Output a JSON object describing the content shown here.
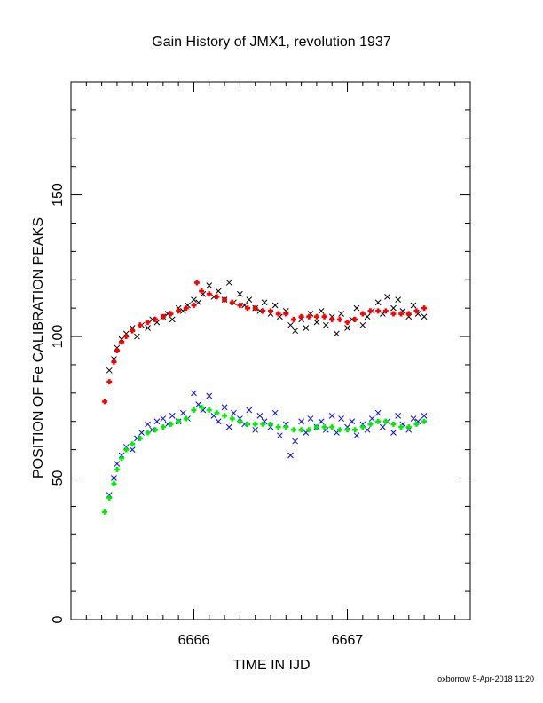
{
  "title": "Gain History of JMX1, revolution 1937",
  "footer": "oxborrow  5-Apr-2018 11:20",
  "chart_data": {
    "type": "scatter",
    "title": "Gain History of JMX1, revolution 1937",
    "xlabel": "TIME IN IJD",
    "ylabel": "POSITION OF Fe CALIBRATION PEAKS",
    "xlim": [
      6665.2,
      6667.8
    ],
    "ylim": [
      0,
      190
    ],
    "xticks": [
      6666,
      6667
    ],
    "xtick_labels": [
      "6666",
      "6667"
    ],
    "yticks": [
      0,
      50,
      100,
      150
    ],
    "ytick_labels": [
      "0",
      "50",
      "100",
      "150"
    ],
    "grid": false,
    "legend": "none",
    "series": [
      {
        "color": "#000000",
        "marker": "x",
        "x": [
          6665.45,
          6665.48,
          6665.5,
          6665.53,
          6665.56,
          6665.6,
          6665.63,
          6665.66,
          6665.7,
          6665.73,
          6665.76,
          6665.8,
          6665.83,
          6665.86,
          6665.9,
          6665.93,
          6665.96,
          6666.0,
          6666.03,
          6666.06,
          6666.1,
          6666.13,
          6666.16,
          6666.2,
          6666.23,
          6666.26,
          6666.3,
          6666.33,
          6666.36,
          6666.4,
          6666.43,
          6666.46,
          6666.5,
          6666.53,
          6666.56,
          6666.6,
          6666.63,
          6666.66,
          6666.7,
          6666.73,
          6666.76,
          6666.8,
          6666.83,
          6666.86,
          6666.9,
          6666.93,
          6666.96,
          6667.0,
          6667.03,
          6667.06,
          6667.1,
          6667.13,
          6667.16,
          6667.2,
          6667.23,
          6667.26,
          6667.3,
          6667.33,
          6667.36,
          6667.4,
          6667.43,
          6667.46,
          6667.5
        ],
        "y": [
          88,
          92,
          96,
          99,
          101,
          103,
          100,
          104,
          103,
          106,
          105,
          107,
          108,
          106,
          110,
          109,
          111,
          113,
          112,
          115,
          118,
          114,
          116,
          113,
          119,
          112,
          115,
          111,
          113,
          110,
          109,
          112,
          108,
          111,
          107,
          109,
          104,
          102,
          106,
          103,
          108,
          105,
          109,
          104,
          107,
          101,
          108,
          103,
          106,
          110,
          104,
          107,
          109,
          112,
          108,
          114,
          110,
          113,
          109,
          107,
          111,
          108,
          107
        ]
      },
      {
        "color": "#ff0000",
        "marker": "+",
        "x": [
          6665.42,
          6665.45,
          6665.48,
          6665.5,
          6665.53,
          6665.56,
          6665.6,
          6665.65,
          6665.7,
          6665.75,
          6665.8,
          6665.85,
          6665.9,
          6665.95,
          6666.0,
          6666.02,
          6666.05,
          6666.1,
          6666.15,
          6666.2,
          6666.25,
          6666.3,
          6666.35,
          6666.4,
          6666.45,
          6666.5,
          6666.55,
          6666.6,
          6666.65,
          6666.7,
          6666.75,
          6666.8,
          6666.85,
          6666.9,
          6666.95,
          6667.0,
          6667.05,
          6667.1,
          6667.15,
          6667.2,
          6667.25,
          6667.3,
          6667.35,
          6667.4,
          6667.45,
          6667.5
        ],
        "y": [
          77,
          84,
          91,
          95,
          98,
          100,
          102,
          104,
          105,
          106,
          107,
          108,
          109,
          110,
          111,
          119,
          116,
          115,
          114,
          113,
          112,
          111,
          110,
          110,
          109,
          109,
          108,
          108,
          106,
          107,
          107,
          107,
          107,
          106,
          106,
          105,
          106,
          108,
          109,
          109,
          109,
          108,
          108,
          108,
          109,
          110
        ]
      },
      {
        "color": "#0000ff",
        "marker": "x",
        "x": [
          6665.45,
          6665.48,
          6665.5,
          6665.53,
          6665.56,
          6665.6,
          6665.63,
          6665.66,
          6665.7,
          6665.73,
          6665.76,
          6665.8,
          6665.83,
          6665.86,
          6665.9,
          6665.93,
          6665.96,
          6666.0,
          6666.03,
          6666.06,
          6666.1,
          6666.13,
          6666.16,
          6666.2,
          6666.23,
          6666.26,
          6666.3,
          6666.33,
          6666.36,
          6666.4,
          6666.43,
          6666.46,
          6666.5,
          6666.53,
          6666.56,
          6666.6,
          6666.63,
          6666.66,
          6666.7,
          6666.73,
          6666.76,
          6666.8,
          6666.83,
          6666.86,
          6666.9,
          6666.93,
          6666.96,
          6667.0,
          6667.03,
          6667.06,
          6667.1,
          6667.13,
          6667.16,
          6667.2,
          6667.23,
          6667.26,
          6667.3,
          6667.33,
          6667.36,
          6667.4,
          6667.43,
          6667.46,
          6667.5
        ],
        "y": [
          44,
          50,
          55,
          58,
          61,
          60,
          64,
          66,
          69,
          67,
          70,
          71,
          69,
          72,
          70,
          73,
          71,
          80,
          76,
          74,
          79,
          72,
          70,
          75,
          68,
          73,
          71,
          69,
          74,
          67,
          72,
          70,
          68,
          73,
          65,
          69,
          58,
          63,
          70,
          66,
          71,
          68,
          70,
          67,
          72,
          66,
          71,
          68,
          70,
          65,
          69,
          67,
          71,
          73,
          68,
          70,
          66,
          72,
          69,
          67,
          71,
          70,
          72
        ]
      },
      {
        "color": "#00ee00",
        "marker": "+",
        "x": [
          6665.42,
          6665.45,
          6665.48,
          6665.5,
          6665.53,
          6665.56,
          6665.6,
          6665.65,
          6665.7,
          6665.75,
          6665.8,
          6665.85,
          6665.9,
          6665.95,
          6666.0,
          6666.05,
          6666.1,
          6666.15,
          6666.2,
          6666.25,
          6666.3,
          6666.35,
          6666.4,
          6666.45,
          6666.5,
          6666.55,
          6666.6,
          6666.65,
          6666.7,
          6666.75,
          6666.8,
          6666.85,
          6666.9,
          6666.95,
          6667.0,
          6667.05,
          6667.1,
          6667.15,
          6667.2,
          6667.25,
          6667.3,
          6667.35,
          6667.4,
          6667.45,
          6667.5
        ],
        "y": [
          38,
          43,
          48,
          53,
          57,
          60,
          62,
          64,
          66,
          67,
          68,
          69,
          70,
          71,
          74,
          75,
          74,
          73,
          72,
          71,
          70,
          69,
          69,
          69,
          69,
          68,
          68,
          67,
          67,
          67,
          68,
          68,
          68,
          67,
          67,
          67,
          68,
          69,
          70,
          70,
          69,
          68,
          68,
          69,
          70
        ]
      }
    ]
  }
}
